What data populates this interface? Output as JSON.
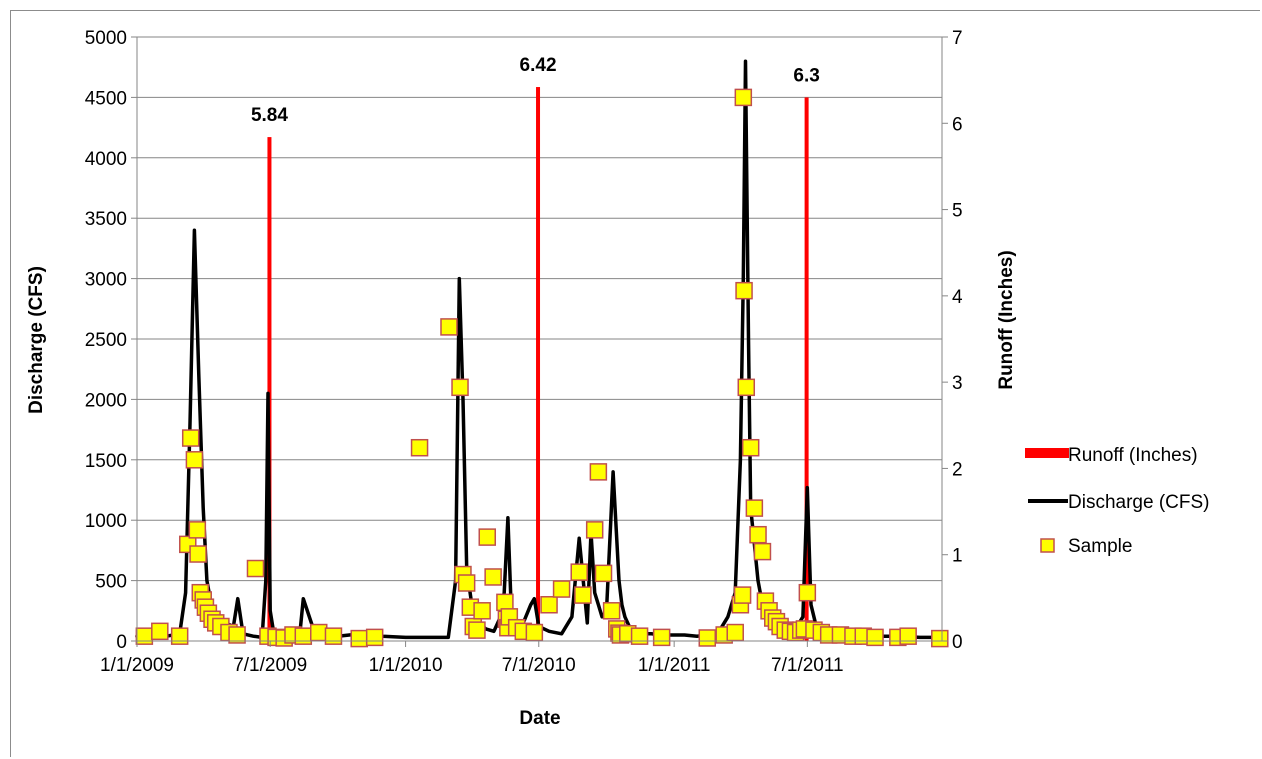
{
  "chart_data": {
    "type": "line",
    "xlabel": "Date",
    "ylabel": "Discharge (CFS)",
    "y2label": "Runoff (Inches)",
    "xlim": [
      "2009-01-01",
      "2011-12-31"
    ],
    "ylim": [
      0,
      5000
    ],
    "y2lim": [
      0,
      7
    ],
    "x_ticks": [
      "1/1/2009",
      "7/1/2009",
      "1/1/2010",
      "7/1/2010",
      "1/1/2011",
      "7/1/2011"
    ],
    "y_ticks": [
      0,
      500,
      1000,
      1500,
      2000,
      2500,
      3000,
      3500,
      4000,
      4500,
      5000
    ],
    "y2_ticks": [
      0,
      1,
      2,
      3,
      4,
      5,
      6,
      7
    ],
    "grid": "horizontal",
    "legend": "right",
    "colors": {
      "runoff": "#ff0000",
      "discharge": "#000000",
      "sample_fill": "#ffff00",
      "sample_edge": "#c0504d",
      "grid": "#868686"
    },
    "series": [
      {
        "name": "Runoff (Inches)",
        "kind": "bar",
        "x": [
          "2009-06-30",
          "2010-06-30",
          "2011-06-30"
        ],
        "values": [
          5.84,
          6.42,
          6.3
        ],
        "labels": [
          "5.84",
          "6.42",
          "6.3"
        ]
      },
      {
        "name": "Discharge (CFS)",
        "kind": "line",
        "x": [
          "2009-01-01",
          "2009-02-10",
          "2009-02-28",
          "2009-03-08",
          "2009-03-14",
          "2009-03-20",
          "2009-03-26",
          "2009-04-01",
          "2009-04-06",
          "2009-04-12",
          "2009-04-20",
          "2009-05-01",
          "2009-05-12",
          "2009-05-18",
          "2009-05-25",
          "2009-06-08",
          "2009-06-20",
          "2009-06-25",
          "2009-06-28",
          "2009-07-01",
          "2009-07-06",
          "2009-07-20",
          "2009-08-05",
          "2009-08-10",
          "2009-08-15",
          "2009-09-01",
          "2009-10-01",
          "2009-11-01",
          "2009-12-01",
          "2010-01-01",
          "2010-02-01",
          "2010-02-28",
          "2010-03-10",
          "2010-03-15",
          "2010-03-20",
          "2010-03-25",
          "2010-04-01",
          "2010-04-10",
          "2010-04-20",
          "2010-05-01",
          "2010-05-10",
          "2010-05-15",
          "2010-05-20",
          "2010-05-25",
          "2010-06-01",
          "2010-06-10",
          "2010-06-20",
          "2010-06-25",
          "2010-07-01",
          "2010-07-15",
          "2010-08-01",
          "2010-08-15",
          "2010-08-25",
          "2010-09-05",
          "2010-09-10",
          "2010-09-15",
          "2010-09-20",
          "2010-09-25",
          "2010-10-01",
          "2010-10-10",
          "2010-10-18",
          "2010-10-22",
          "2010-10-26",
          "2010-11-01",
          "2010-11-10",
          "2010-11-20",
          "2010-12-01",
          "2010-12-15",
          "2011-01-15",
          "2011-02-01",
          "2011-03-01",
          "2011-03-15",
          "2011-03-25",
          "2011-04-01",
          "2011-04-05",
          "2011-04-08",
          "2011-04-12",
          "2011-04-15",
          "2011-04-20",
          "2011-04-25",
          "2011-05-01",
          "2011-05-10",
          "2011-05-20",
          "2011-06-01",
          "2011-06-15",
          "2011-06-25",
          "2011-07-01",
          "2011-07-06",
          "2011-07-12",
          "2011-07-20",
          "2011-08-01",
          "2011-09-01",
          "2011-10-01",
          "2011-11-01",
          "2011-12-01",
          "2011-12-31"
        ],
        "values": [
          40,
          40,
          60,
          400,
          1800,
          3400,
          2200,
          1100,
          500,
          300,
          200,
          150,
          120,
          350,
          60,
          40,
          30,
          500,
          2050,
          250,
          60,
          40,
          30,
          40,
          350,
          40,
          40,
          60,
          40,
          30,
          30,
          30,
          500,
          3000,
          2000,
          600,
          300,
          150,
          100,
          80,
          200,
          400,
          1020,
          200,
          100,
          150,
          300,
          350,
          120,
          80,
          60,
          200,
          850,
          150,
          900,
          400,
          300,
          200,
          250,
          1400,
          500,
          300,
          200,
          120,
          80,
          60,
          60,
          50,
          50,
          40,
          60,
          200,
          400,
          1500,
          3000,
          4800,
          2500,
          1100,
          800,
          500,
          300,
          200,
          150,
          80,
          100,
          200,
          1270,
          300,
          150,
          100,
          60,
          50,
          40,
          40,
          30,
          30
        ]
      },
      {
        "name": "Sample",
        "kind": "scatter",
        "x": [
          "2009-01-11",
          "2009-02-01",
          "2009-02-28",
          "2009-03-11",
          "2009-03-15",
          "2009-03-20",
          "2009-03-24",
          "2009-03-25",
          "2009-03-28",
          "2009-04-01",
          "2009-04-04",
          "2009-04-08",
          "2009-04-13",
          "2009-04-18",
          "2009-04-25",
          "2009-05-06",
          "2009-05-17",
          "2009-06-11",
          "2009-06-28",
          "2009-07-09",
          "2009-07-20",
          "2009-08-01",
          "2009-08-15",
          "2009-09-05",
          "2009-09-25",
          "2009-10-30",
          "2009-11-20",
          "2010-01-20",
          "2010-03-01",
          "2010-03-16",
          "2010-03-20",
          "2010-03-25",
          "2010-03-30",
          "2010-04-03",
          "2010-04-08",
          "2010-04-15",
          "2010-04-22",
          "2010-04-30",
          "2010-05-16",
          "2010-05-18",
          "2010-05-20",
          "2010-05-22",
          "2010-06-01",
          "2010-06-10",
          "2010-06-25",
          "2010-07-15",
          "2010-08-01",
          "2010-08-25",
          "2010-08-30",
          "2010-09-15",
          "2010-09-20",
          "2010-09-27",
          "2010-10-08",
          "2010-10-15",
          "2010-10-18",
          "2010-10-20",
          "2010-10-30",
          "2010-11-15",
          "2010-12-15",
          "2011-02-15",
          "2011-03-10",
          "2011-03-25",
          "2011-04-01",
          "2011-04-04",
          "2011-04-05",
          "2011-04-06",
          "2011-04-09",
          "2011-04-15",
          "2011-04-20",
          "2011-04-25",
          "2011-05-01",
          "2011-05-05",
          "2011-05-10",
          "2011-05-15",
          "2011-05-20",
          "2011-05-25",
          "2011-06-01",
          "2011-06-08",
          "2011-06-15",
          "2011-06-22",
          "2011-06-27",
          "2011-07-01",
          "2011-07-10",
          "2011-07-20",
          "2011-07-30",
          "2011-08-15",
          "2011-09-01",
          "2011-09-15",
          "2011-10-01",
          "2011-11-01",
          "2011-11-15",
          "2011-12-28"
        ],
        "values": [
          40,
          80,
          40,
          800,
          1680,
          1500,
          920,
          720,
          400,
          340,
          280,
          230,
          180,
          150,
          120,
          70,
          50,
          600,
          40,
          30,
          25,
          50,
          40,
          70,
          40,
          20,
          30,
          1600,
          2600,
          2100,
          550,
          480,
          280,
          120,
          90,
          250,
          860,
          530,
          320,
          180,
          110,
          200,
          110,
          80,
          70,
          300,
          430,
          570,
          380,
          920,
          1400,
          560,
          250,
          100,
          65,
          50,
          60,
          40,
          30,
          25,
          50,
          70,
          300,
          380,
          4500,
          2900,
          2100,
          1600,
          1100,
          880,
          740,
          330,
          250,
          190,
          160,
          120,
          90,
          80,
          70,
          90,
          100,
          400,
          90,
          70,
          50,
          50,
          40,
          40,
          30,
          30,
          40,
          20
        ]
      }
    ]
  }
}
